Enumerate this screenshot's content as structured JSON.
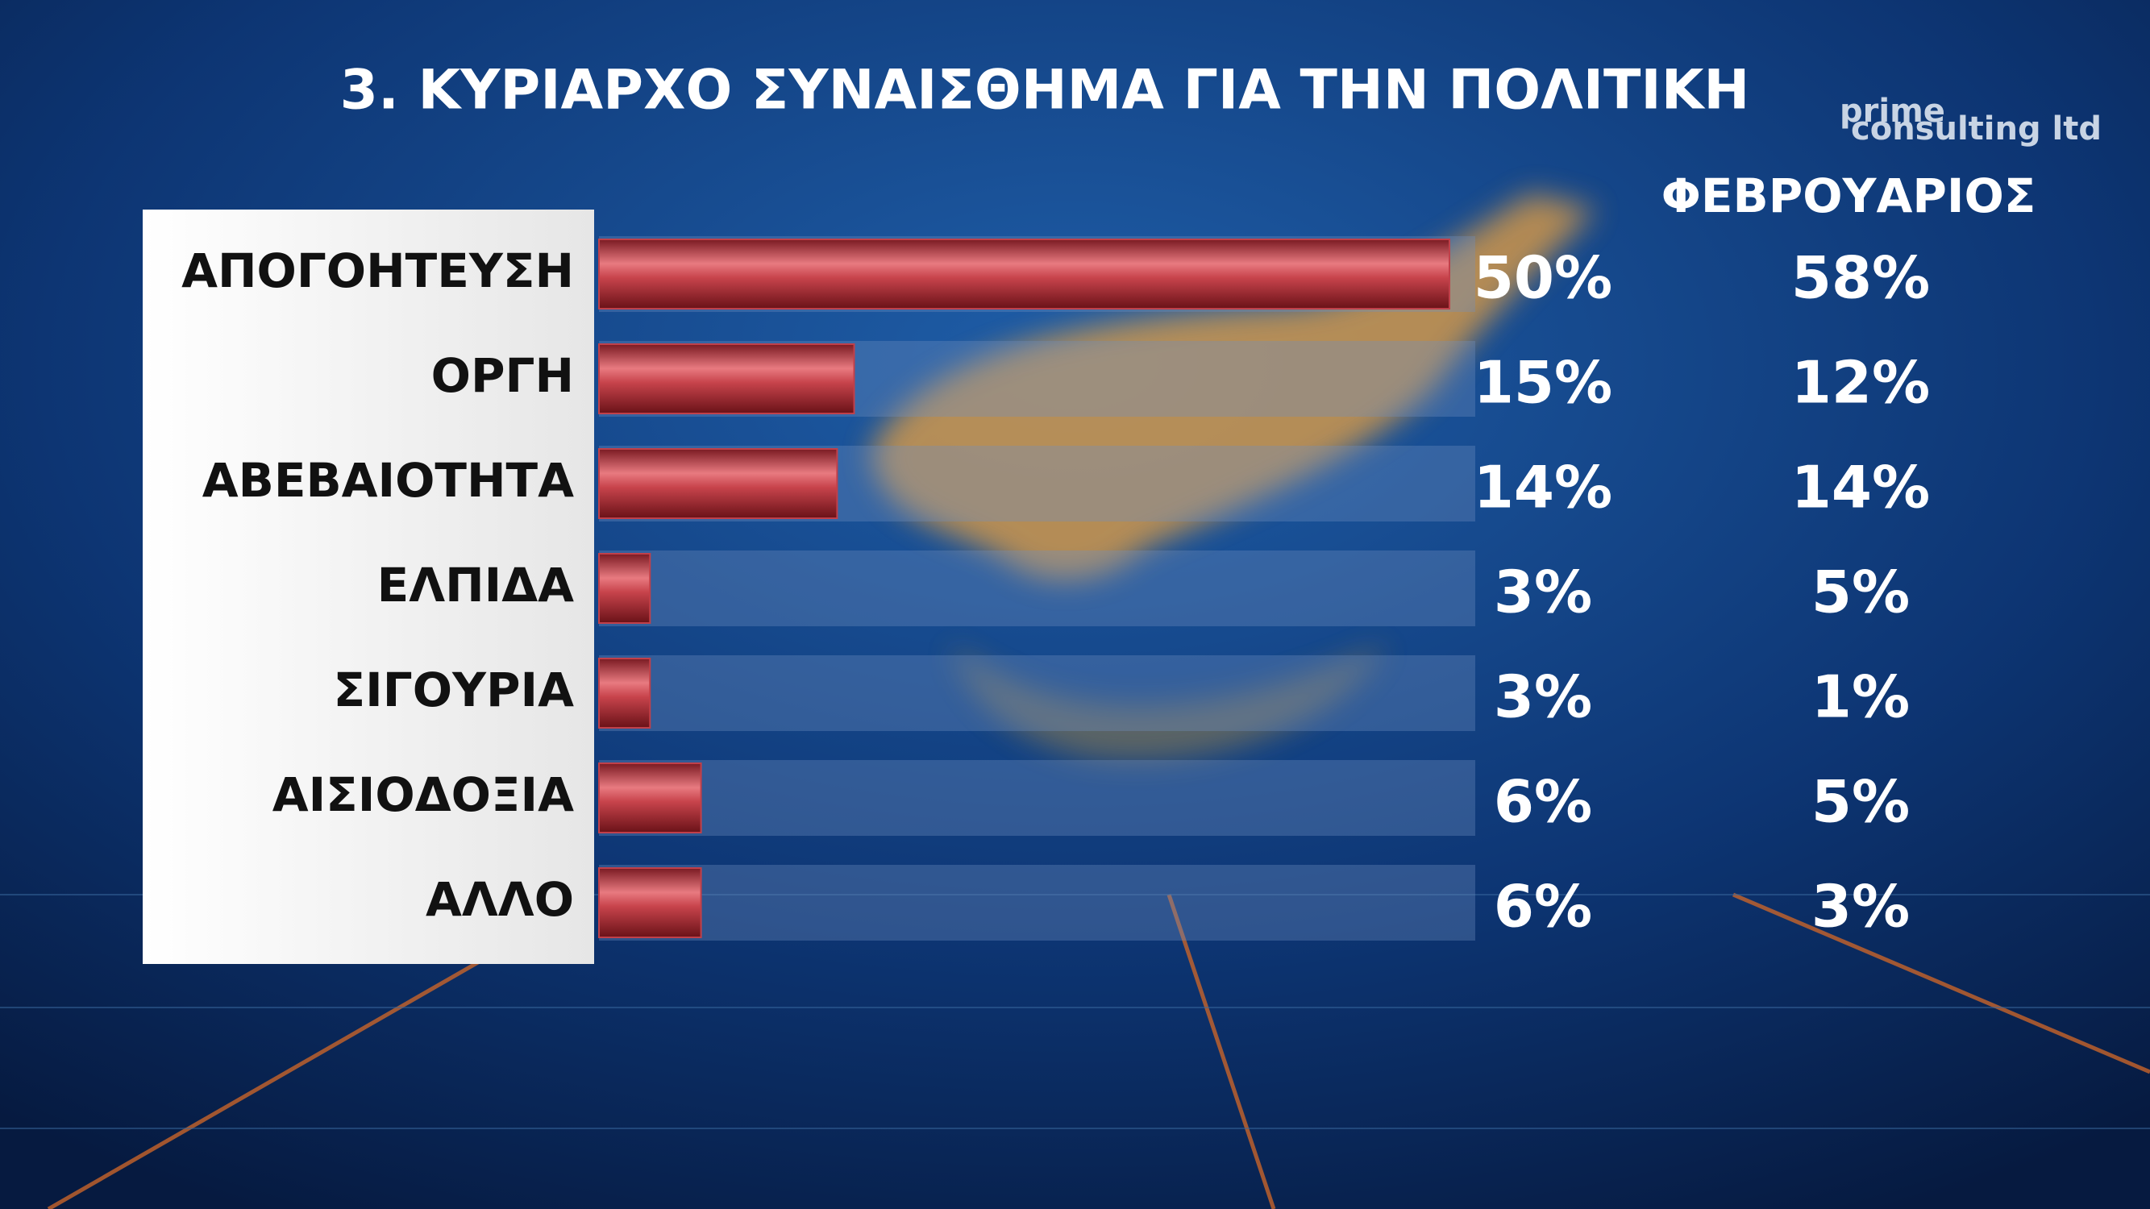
{
  "chart_data": {
    "type": "bar",
    "title": "3. ΚΥΡΙΑΡΧΟ ΣΥΝΑΙΣΘΗΜΑ ΓΙΑ ΤΗΝ ΠΟΛΙΤΙΚΗ",
    "logo": [
      "prime",
      "consulting ltd"
    ],
    "categories": [
      "ΑΠΟΓΟΗΤΕΥΣΗ",
      "ΟΡΓΗ",
      "ΑΒΕΒΑΙΟΤΗΤΑ",
      "ΕΛΠΙΔΑ",
      "ΣΙΓΟΥΡΙΑ",
      "ΑΙΣΙΟΔΟΞΙΑ",
      "ΑΛΛΟ"
    ],
    "values": [
      50,
      15,
      14,
      3,
      3,
      6,
      6
    ],
    "value_labels": [
      "50%",
      "15%",
      "14%",
      "3%",
      "3%",
      "6%",
      "6%"
    ],
    "color": "#c0404a",
    "comparison": {
      "name": "ΦΕΒΡΟΥΑΡΙΟΣ",
      "values": [
        58,
        12,
        14,
        5,
        1,
        5,
        3
      ],
      "value_labels": [
        "58%",
        "12%",
        "14%",
        "5%",
        "1%",
        "5%",
        "3%"
      ]
    }
  }
}
